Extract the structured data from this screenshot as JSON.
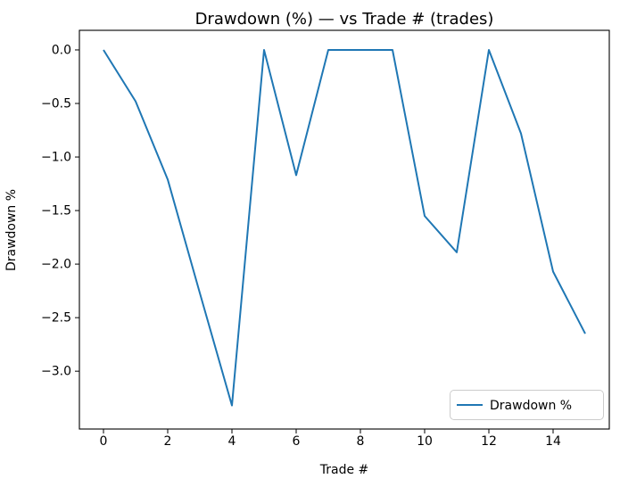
{
  "chart_data": {
    "type": "line",
    "title": "Drawdown (%) — vs Trade # (trades)",
    "xlabel": "Trade #",
    "ylabel": "Drawdown %",
    "x": [
      0,
      1,
      2,
      3,
      4,
      5,
      6,
      7,
      8,
      9,
      10,
      11,
      12,
      13,
      14,
      15
    ],
    "series": [
      {
        "name": "Drawdown %",
        "color": "#1f77b4",
        "values": [
          0.0,
          -0.48,
          -1.21,
          -2.27,
          -3.32,
          0.0,
          -1.17,
          0.0,
          0.0,
          0.0,
          -1.55,
          -1.89,
          0.0,
          -0.78,
          -2.07,
          -2.65
        ]
      }
    ],
    "xlim": [
      -0.75,
      15.75
    ],
    "ylim": [
      -3.54,
      0.183
    ],
    "xticks": [
      0,
      2,
      4,
      6,
      8,
      10,
      12,
      14
    ],
    "xtick_labels": [
      "0",
      "2",
      "4",
      "6",
      "8",
      "10",
      "12",
      "14"
    ],
    "yticks": [
      0.0,
      -0.5,
      -1.0,
      -1.5,
      -2.0,
      -2.5,
      -3.0
    ],
    "ytick_labels": [
      "0.0",
      "−0.5",
      "−1.0",
      "−1.5",
      "−2.0",
      "−2.5",
      "−3.0"
    ],
    "grid": false,
    "legend": {
      "position": "lower right",
      "entries": [
        "Drawdown %"
      ]
    }
  },
  "figure": {
    "background": "#ffffff",
    "spine_color": "#000000",
    "text_color": "#000000",
    "legend_border_color": "#cccccc"
  }
}
